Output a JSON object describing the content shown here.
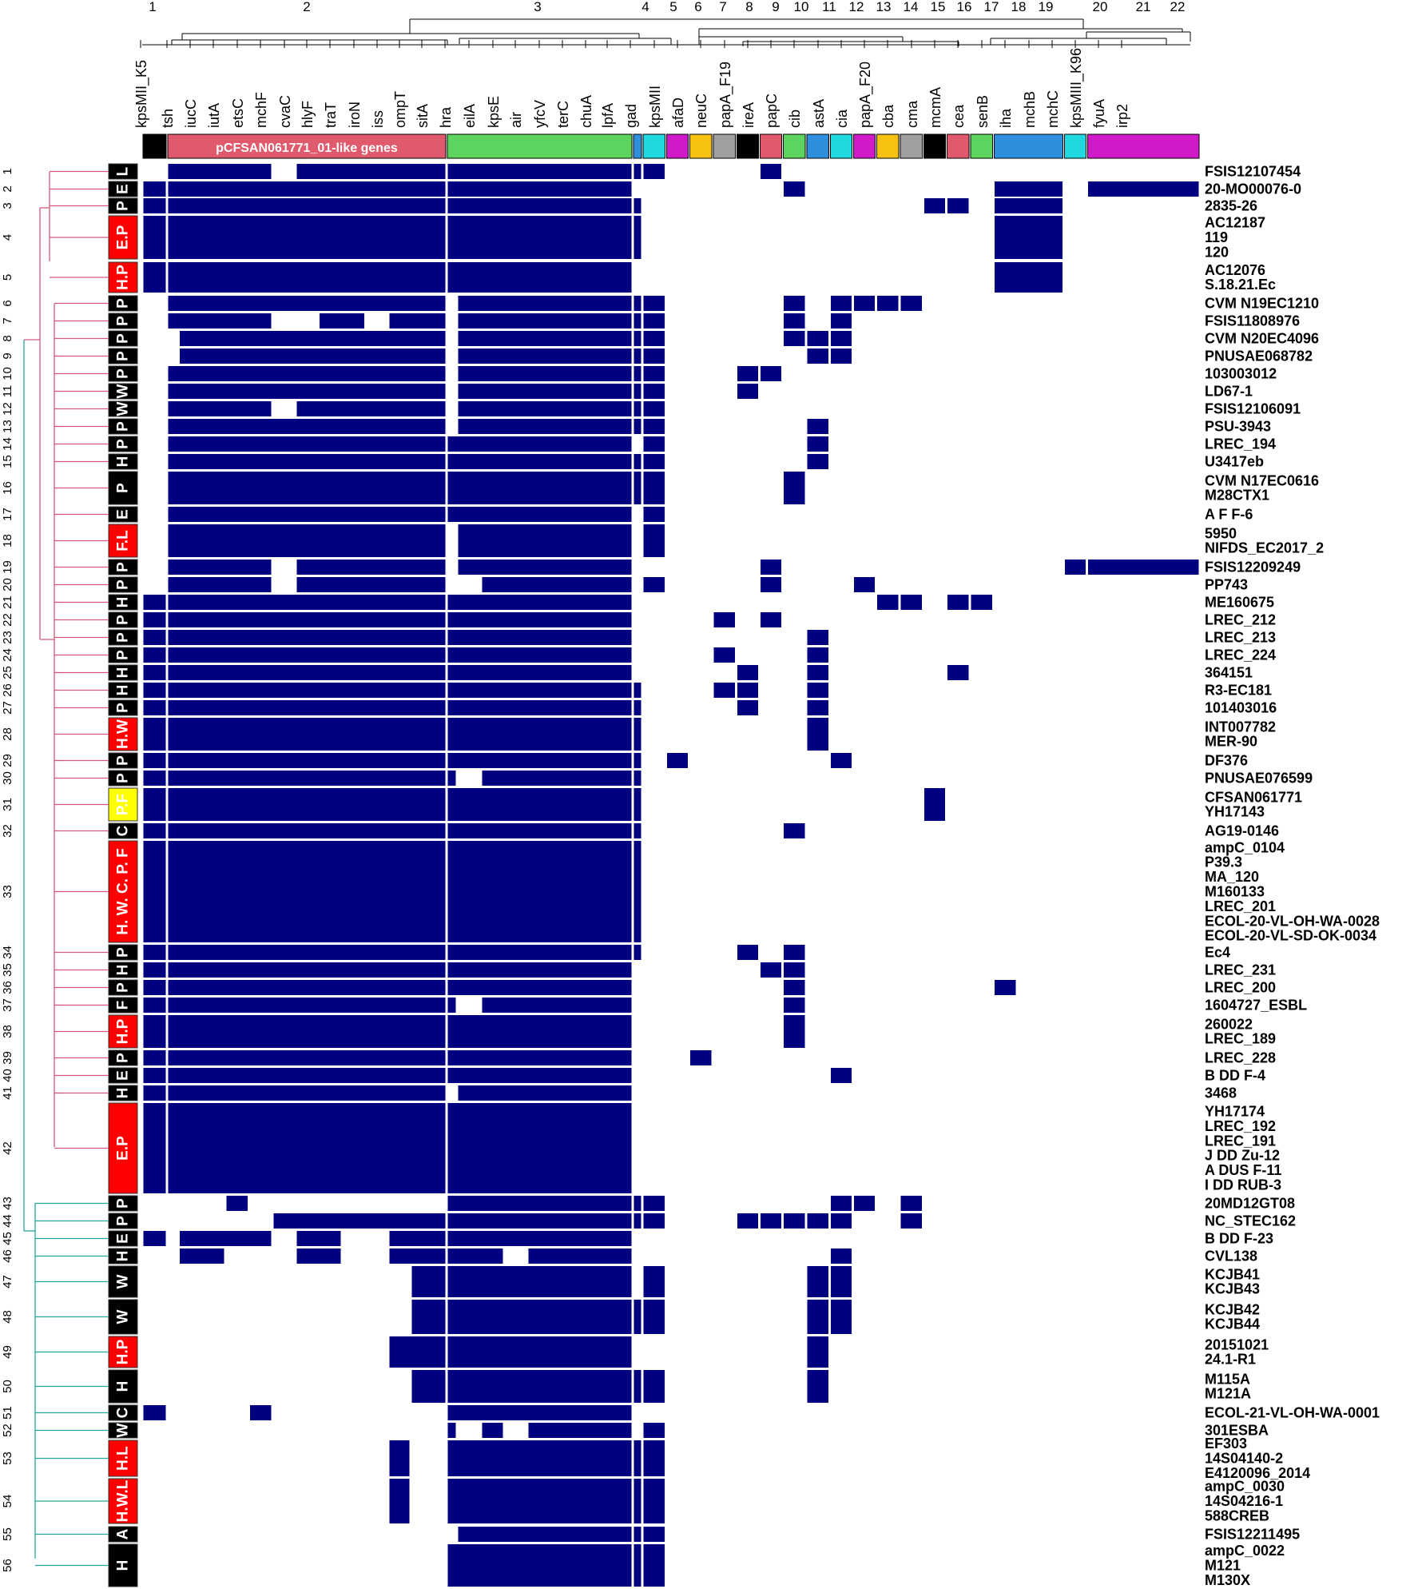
{
  "chart_data": {
    "type": "heatmap",
    "title": "",
    "colors": {
      "present": "#000080",
      "cluster_a": "#d4577a",
      "cluster_b": "#26a69a",
      "dendro": "#000000"
    },
    "column_cluster_numbers": [
      "1",
      "2",
      "3",
      "4",
      "5",
      "6",
      "7",
      "8",
      "9",
      "10",
      "11",
      "12",
      "13",
      "14",
      "15",
      "16",
      "17",
      "18",
      "19",
      "20",
      "21",
      "22"
    ],
    "genes": [
      "kpsMII_K5",
      "tsh",
      "iucC",
      "iutA",
      "etsC",
      "mchF",
      "cvaC",
      "hlyF",
      "traT",
      "iroN",
      "iss",
      "ompT",
      "sitA",
      "hra",
      "eilA",
      "kpsE",
      "air",
      "yfcV",
      "terC",
      "chuA",
      "lpfA",
      "gad",
      "kpsMII",
      "afaD",
      "neuC",
      "papA_F19",
      "ireA",
      "papC",
      "cib",
      "astA",
      "cia",
      "papA_F20",
      "cba",
      "cma",
      "mcmA",
      "cea",
      "senB",
      "iha",
      "mchB",
      "mchC",
      "kpsMIII_K96",
      "fyuA",
      "irp2"
    ],
    "gene_groups": [
      {
        "label": "",
        "color": "#000000",
        "from": 0,
        "to": 0
      },
      {
        "label": "pCFSAN061771_01-like genes",
        "color": "#e05a6e",
        "from": 1,
        "to": 12
      },
      {
        "label": "",
        "color": "#5dd45d",
        "from": 13,
        "to": 20
      },
      {
        "label": "",
        "color": "#2e8fdf",
        "from": 21,
        "to": 21
      },
      {
        "label": "",
        "color": "#20d8e0",
        "from": 22,
        "to": 22
      },
      {
        "label": "",
        "color": "#d019c8",
        "from": 23,
        "to": 23
      },
      {
        "label": "",
        "color": "#f5c211",
        "from": 24,
        "to": 24
      },
      {
        "label": "",
        "color": "#a0a0a0",
        "from": 25,
        "to": 25
      },
      {
        "label": "",
        "color": "#000000",
        "from": 26,
        "to": 26
      },
      {
        "label": "",
        "color": "#e05a6e",
        "from": 27,
        "to": 27
      },
      {
        "label": "",
        "color": "#5dd45d",
        "from": 28,
        "to": 28
      },
      {
        "label": "",
        "color": "#2e8fdf",
        "from": 29,
        "to": 29
      },
      {
        "label": "",
        "color": "#20d8e0",
        "from": 30,
        "to": 30
      },
      {
        "label": "",
        "color": "#d019c8",
        "from": 31,
        "to": 31
      },
      {
        "label": "",
        "color": "#f5c211",
        "from": 32,
        "to": 32
      },
      {
        "label": "",
        "color": "#a0a0a0",
        "from": 33,
        "to": 33
      },
      {
        "label": "",
        "color": "#000000",
        "from": 34,
        "to": 34
      },
      {
        "label": "",
        "color": "#e05a6e",
        "from": 35,
        "to": 35
      },
      {
        "label": "",
        "color": "#5dd45d",
        "from": 36,
        "to": 36
      },
      {
        "label": "",
        "color": "#2e8fdf",
        "from": 37,
        "to": 39
      },
      {
        "label": "",
        "color": "#20d8e0",
        "from": 40,
        "to": 40
      },
      {
        "label": "",
        "color": "#d019c8",
        "from": 41,
        "to": 42
      }
    ],
    "rows": [
      {
        "n": "1",
        "src": "L",
        "red": false,
        "strains": [
          "FSIS12107454"
        ],
        "on": [
          "1-5",
          "7-12",
          "13-20",
          "21",
          "22",
          "27"
        ]
      },
      {
        "n": "2",
        "src": "E",
        "red": false,
        "strains": [
          "20-MO00076-0"
        ],
        "on": [
          "0",
          "1-12",
          "13-20",
          "28",
          "37-39",
          "41-42"
        ]
      },
      {
        "n": "3",
        "src": "P",
        "red": false,
        "strains": [
          "2835-26"
        ],
        "on": [
          "0",
          "1-12",
          "13-20",
          "21",
          "34",
          "35",
          "37-39"
        ]
      },
      {
        "n": "4",
        "src": "E.P",
        "red": true,
        "strains": [
          "AC12187",
          "119",
          "120"
        ],
        "on": [
          "0",
          "1-12",
          "13-20",
          "21",
          "37-39"
        ]
      },
      {
        "n": "5",
        "src": "H.P",
        "red": true,
        "strains": [
          "AC12076",
          "S.18.21.Ec"
        ],
        "on": [
          "0",
          "1-12",
          "13-20",
          "37-39"
        ]
      },
      {
        "n": "6",
        "src": "P",
        "red": false,
        "strains": [
          "CVM N19EC1210"
        ],
        "on": [
          "1-12",
          "14-20",
          "21",
          "22",
          "28",
          "30",
          "31",
          "32",
          "33"
        ]
      },
      {
        "n": "7",
        "src": "P",
        "red": false,
        "strains": [
          "FSIS11808976"
        ],
        "on": [
          "1-5",
          "8-9",
          "11-12",
          "14-20",
          "21",
          "22",
          "28",
          "30"
        ]
      },
      {
        "n": "8",
        "src": "P",
        "red": false,
        "strains": [
          "CVM N20EC4096"
        ],
        "on": [
          "2-12",
          "14-20",
          "21",
          "22",
          "28",
          "29",
          "30"
        ]
      },
      {
        "n": "9",
        "src": "P",
        "red": false,
        "strains": [
          "PNUSAE068782"
        ],
        "on": [
          "2-12",
          "14-20",
          "21",
          "22",
          "29",
          "30"
        ]
      },
      {
        "n": "10",
        "src": "P",
        "red": false,
        "strains": [
          "103003012"
        ],
        "on": [
          "1-12",
          "14-20",
          "21",
          "22",
          "26",
          "27"
        ]
      },
      {
        "n": "11",
        "src": "W",
        "red": false,
        "strains": [
          "LD67-1"
        ],
        "on": [
          "1-12",
          "14-20",
          "21",
          "22",
          "26"
        ]
      },
      {
        "n": "12",
        "src": "W",
        "red": false,
        "strains": [
          "FSIS12106091"
        ],
        "on": [
          "1-5",
          "7-12",
          "14-20",
          "21",
          "22"
        ]
      },
      {
        "n": "13",
        "src": "P",
        "red": false,
        "strains": [
          "PSU-3943"
        ],
        "on": [
          "1-12",
          "14-20",
          "21",
          "22",
          "29"
        ]
      },
      {
        "n": "14",
        "src": "P",
        "red": false,
        "strains": [
          "LREC_194"
        ],
        "on": [
          "1-12",
          "13-20",
          "22",
          "29"
        ]
      },
      {
        "n": "15",
        "src": "H",
        "red": false,
        "strains": [
          "U3417eb"
        ],
        "on": [
          "1-12",
          "13-20",
          "21",
          "22",
          "29"
        ]
      },
      {
        "n": "16",
        "src": "P",
        "red": false,
        "strains": [
          "CVM N17EC0616",
          "M28CTX1"
        ],
        "on": [
          "1-12",
          "13-20",
          "21",
          "22",
          "28"
        ]
      },
      {
        "n": "17",
        "src": "E",
        "red": false,
        "strains": [
          "A F F-6"
        ],
        "on": [
          "1-12",
          "13-20",
          "22"
        ]
      },
      {
        "n": "18",
        "src": "F.L",
        "red": true,
        "strains": [
          "5950",
          "NIFDS_EC2017_2"
        ],
        "on": [
          "1-12",
          "14-20",
          "22"
        ]
      },
      {
        "n": "19",
        "src": "P",
        "red": false,
        "strains": [
          "FSIS12209249"
        ],
        "on": [
          "1-5",
          "7-12",
          "14-20",
          "27",
          "40",
          "41-42"
        ]
      },
      {
        "n": "20",
        "src": "P",
        "red": false,
        "strains": [
          "PP743"
        ],
        "on": [
          "1-5",
          "7-12",
          "15-20",
          "22",
          "27",
          "31"
        ]
      },
      {
        "n": "21",
        "src": "H",
        "red": false,
        "strains": [
          "ME160675"
        ],
        "on": [
          "0",
          "1-12",
          "13-20",
          "32",
          "33",
          "35",
          "36"
        ]
      },
      {
        "n": "22",
        "src": "P",
        "red": false,
        "strains": [
          "LREC_212"
        ],
        "on": [
          "0",
          "1-12",
          "13-20",
          "25",
          "27"
        ]
      },
      {
        "n": "23",
        "src": "P",
        "red": false,
        "strains": [
          "LREC_213"
        ],
        "on": [
          "0",
          "1-12",
          "13-20",
          "29"
        ]
      },
      {
        "n": "24",
        "src": "P",
        "red": false,
        "strains": [
          "LREC_224"
        ],
        "on": [
          "0",
          "1-12",
          "13-20",
          "25",
          "29"
        ]
      },
      {
        "n": "25",
        "src": "H",
        "red": false,
        "strains": [
          "364151"
        ],
        "on": [
          "0",
          "1-12",
          "13-20",
          "26",
          "29",
          "35"
        ]
      },
      {
        "n": "26",
        "src": "H",
        "red": false,
        "strains": [
          "R3-EC181"
        ],
        "on": [
          "0",
          "1-12",
          "13-20",
          "21",
          "25",
          "26",
          "29"
        ]
      },
      {
        "n": "27",
        "src": "P",
        "red": false,
        "strains": [
          "101403016"
        ],
        "on": [
          "0",
          "1-12",
          "13-20",
          "21",
          "26",
          "29"
        ]
      },
      {
        "n": "28",
        "src": "H.W",
        "red": true,
        "strains": [
          "INT007782",
          "MER-90"
        ],
        "on": [
          "0",
          "1-12",
          "13-20",
          "21",
          "29"
        ]
      },
      {
        "n": "29",
        "src": "P",
        "red": false,
        "strains": [
          "DF376"
        ],
        "on": [
          "0",
          "1-12",
          "13-20",
          "21",
          "23",
          "30"
        ]
      },
      {
        "n": "30",
        "src": "P",
        "red": false,
        "strains": [
          "PNUSAE076599"
        ],
        "on": [
          "0",
          "1-12",
          "13",
          "15-20",
          "21"
        ]
      },
      {
        "n": "31",
        "src": "P.F",
        "red": false,
        "yellow": true,
        "strains": [
          "CFSAN061771",
          "YH17143"
        ],
        "on": [
          "0",
          "1-12",
          "13-20",
          "21",
          "34"
        ]
      },
      {
        "n": "32",
        "src": "C",
        "red": false,
        "strains": [
          "AG19-0146"
        ],
        "on": [
          "0",
          "1-12",
          "13-20",
          "21",
          "28"
        ]
      },
      {
        "n": "33",
        "src": "H. W. C. P. F",
        "red": true,
        "strains": [
          "ampC_0104",
          "P39.3",
          "MA_120",
          "M160133",
          "LREC_201",
          "ECOL-20-VL-OH-WA-0028",
          "ECOL-20-VL-SD-OK-0034"
        ],
        "on": [
          "0",
          "1-12",
          "13-20",
          "21"
        ]
      },
      {
        "n": "34",
        "src": "P",
        "red": false,
        "strains": [
          "Ec4"
        ],
        "on": [
          "0",
          "1-12",
          "13-20",
          "21",
          "26",
          "28"
        ]
      },
      {
        "n": "35",
        "src": "H",
        "red": false,
        "strains": [
          "LREC_231"
        ],
        "on": [
          "0",
          "1-12",
          "13-20",
          "27",
          "28"
        ]
      },
      {
        "n": "36",
        "src": "P",
        "red": false,
        "strains": [
          "LREC_200"
        ],
        "on": [
          "0",
          "1-12",
          "13-20",
          "28",
          "37"
        ]
      },
      {
        "n": "37",
        "src": "F",
        "red": false,
        "strains": [
          "1604727_ESBL"
        ],
        "on": [
          "0",
          "1-12",
          "13",
          "15-20",
          "28"
        ]
      },
      {
        "n": "38",
        "src": "H.P",
        "red": true,
        "strains": [
          "260022",
          "LREC_189"
        ],
        "on": [
          "0",
          "1-12",
          "13-20",
          "28"
        ]
      },
      {
        "n": "39",
        "src": "P",
        "red": false,
        "strains": [
          "LREC_228"
        ],
        "on": [
          "0",
          "1-12",
          "13-20",
          "24"
        ]
      },
      {
        "n": "40",
        "src": "E",
        "red": false,
        "strains": [
          "B DD F-4"
        ],
        "on": [
          "0",
          "1-12",
          "13-20",
          "30"
        ]
      },
      {
        "n": "41",
        "src": "H",
        "red": false,
        "strains": [
          "3468"
        ],
        "on": [
          "0",
          "1-12",
          "14-20"
        ]
      },
      {
        "n": "42",
        "src": "E.P",
        "red": true,
        "strains": [
          "YH17174",
          "LREC_192",
          "LREC_191",
          "J DD Zu-12",
          "A DUS F-11",
          "I DD RUB-3"
        ],
        "on": [
          "0",
          "1-12",
          "13-20"
        ]
      },
      {
        "n": "43",
        "src": "P",
        "red": false,
        "strains": [
          "20MD12GT08"
        ],
        "on": [
          "4",
          "13-20",
          "21",
          "22",
          "30",
          "31",
          "33"
        ]
      },
      {
        "n": "44",
        "src": "P",
        "red": false,
        "strains": [
          "NC_STEC162"
        ],
        "on": [
          "6-12",
          "13-20",
          "21",
          "22",
          "26",
          "27",
          "28",
          "29",
          "30",
          "33"
        ]
      },
      {
        "n": "45",
        "src": "E",
        "red": false,
        "strains": [
          "B DD F-23"
        ],
        "on": [
          "0",
          "2-5",
          "7-8",
          "11-12",
          "13-20"
        ]
      },
      {
        "n": "46",
        "src": "H",
        "red": false,
        "strains": [
          "CVL138"
        ],
        "on": [
          "2-3",
          "7-8",
          "11-12",
          "13-15",
          "17-20",
          "30"
        ]
      },
      {
        "n": "47",
        "src": "W",
        "red": false,
        "strains": [
          "KCJB41",
          "KCJB43"
        ],
        "on": [
          "12",
          "13-20",
          "22",
          "29",
          "30"
        ]
      },
      {
        "n": "48",
        "src": "W",
        "red": false,
        "strains": [
          "KCJB42",
          "KCJB44"
        ],
        "on": [
          "12",
          "13-20",
          "21",
          "22",
          "29",
          "30"
        ]
      },
      {
        "n": "49",
        "src": "H.P",
        "red": true,
        "strains": [
          "20151021",
          "24.1-R1"
        ],
        "on": [
          "11-12",
          "13-20",
          "29"
        ]
      },
      {
        "n": "50",
        "src": "H",
        "red": false,
        "strains": [
          "M115A",
          "M121A"
        ],
        "on": [
          "12",
          "13-20",
          "21",
          "22",
          "29"
        ]
      },
      {
        "n": "51",
        "src": "C",
        "red": false,
        "strains": [
          "ECOL-21-VL-OH-WA-0001"
        ],
        "on": [
          "0",
          "5",
          "13-20"
        ]
      },
      {
        "n": "52",
        "src": "W",
        "red": false,
        "strains": [
          "301ESBA"
        ],
        "on": [
          "13",
          "15",
          "17-20",
          "22"
        ]
      },
      {
        "n": "53",
        "src": "H.L",
        "red": true,
        "strains": [
          "EF303",
          "14S04140-2",
          "E4120096_2014"
        ],
        "on": [
          "11",
          "13-20",
          "21",
          "22"
        ]
      },
      {
        "n": "54",
        "src": "H.W.L",
        "red": true,
        "strains": [
          "ampC_0030",
          "14S04216-1",
          "588CREB"
        ],
        "on": [
          "11",
          "13-20",
          "21",
          "22"
        ]
      },
      {
        "n": "55",
        "src": "A",
        "red": false,
        "strains": [
          "FSIS12211495"
        ],
        "on": [
          "14-20",
          "21",
          "22"
        ]
      },
      {
        "n": "56",
        "src": "H",
        "red": false,
        "strains": [
          "ampC_0022",
          "M121",
          "M130X"
        ],
        "on": [
          "13-20",
          "21",
          "22"
        ]
      }
    ]
  }
}
